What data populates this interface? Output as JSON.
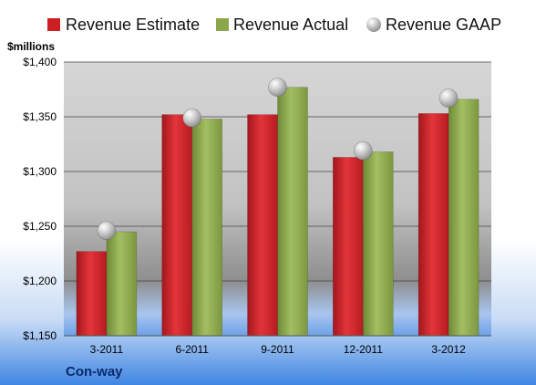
{
  "chart_data": {
    "type": "bar",
    "categories": [
      "3-2011",
      "6-2011",
      "9-2011",
      "12-2011",
      "3-2012"
    ],
    "series": [
      {
        "name": "Revenue Estimate",
        "values": [
          1227,
          1352,
          1352,
          1313,
          1353
        ],
        "color": "#cc1f24"
      },
      {
        "name": "Revenue Actual",
        "values": [
          1245,
          1348,
          1377,
          1318,
          1366
        ],
        "color": "#8aa84a"
      }
    ],
    "gaap_series": {
      "name": "Revenue GAAP",
      "values": [
        1246,
        1349,
        1377,
        1319,
        1367
      ]
    },
    "ylabel": "$millions",
    "ylim": [
      1150,
      1400
    ],
    "yticks": [
      1150,
      1200,
      1250,
      1300,
      1350,
      1400
    ],
    "ytick_labels": [
      "$1,150",
      "$1,200",
      "$1,250",
      "$1,300",
      "$1,350",
      "$1,400"
    ],
    "grid": true,
    "legend_position": "top"
  },
  "company": "Con-way"
}
